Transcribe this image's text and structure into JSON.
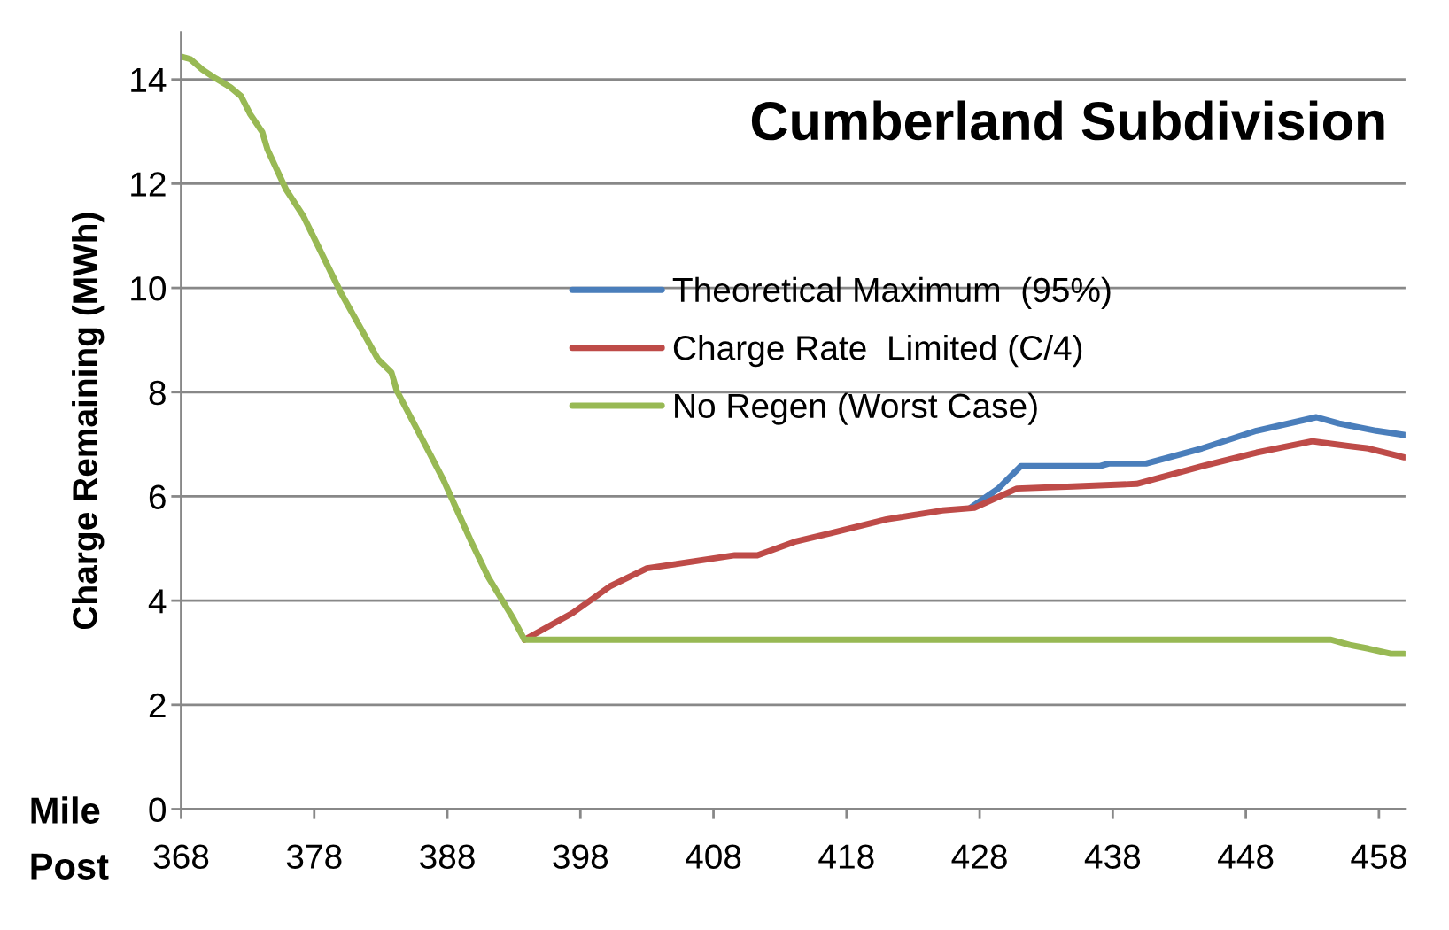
{
  "chart_data": {
    "type": "line",
    "title": "Cumberland Subdivision",
    "ylabel": "Charge Remaining (MWh)",
    "annotations": [
      "Mile",
      "Post"
    ],
    "xlim": [
      368,
      460
    ],
    "xticks": [
      368,
      378,
      388,
      398,
      408,
      418,
      428,
      438,
      448,
      458
    ],
    "ylim": [
      0,
      14.9
    ],
    "yticks": [
      0,
      2,
      4,
      6,
      8,
      10,
      12,
      14
    ],
    "grid": "y",
    "legend": "right",
    "marker": "none",
    "line_style": "solid",
    "series": [
      {
        "name": "Theoretical Maximum  (95%)",
        "color": "#4a7ebb",
        "x": [
          427.3,
          429.4,
          431.1,
          437,
          437.7,
          440.5,
          444.7,
          448.8,
          453.3,
          455,
          457.8,
          459.9
        ],
        "values": [
          5.78,
          6.15,
          6.58,
          6.58,
          6.63,
          6.63,
          6.92,
          7.26,
          7.52,
          7.4,
          7.26,
          7.18
        ]
      },
      {
        "name": "Charge Rate  Limited (C/4)",
        "color": "#be4b48",
        "x": [
          393.8,
          397.4,
          400.2,
          403,
          409.6,
          411.3,
          414.1,
          416.9,
          421,
          425.2,
          427.6,
          430.8,
          435,
          439.8,
          444.7,
          448.8,
          453,
          454.4,
          457.2,
          459.9
        ],
        "values": [
          3.25,
          3.76,
          4.27,
          4.62,
          4.87,
          4.87,
          5.13,
          5.3,
          5.56,
          5.73,
          5.78,
          6.15,
          6.19,
          6.24,
          6.58,
          6.84,
          7.06,
          7.01,
          6.92,
          6.75
        ]
      },
      {
        "name": "No Regen (Worst Case)",
        "color": "#98b954",
        "x": [
          368,
          368.7,
          369.6,
          370.6,
          371.7,
          372.5,
          373.2,
          374.1,
          374.5,
          375.9,
          377.2,
          380,
          382.8,
          383.8,
          384.2,
          386.3,
          387.7,
          389.8,
          391.1,
          392.9,
          393.8,
          454.4,
          455.8,
          457.2,
          458.9,
          459.9
        ],
        "values": [
          14.44,
          14.39,
          14.19,
          14.02,
          13.85,
          13.68,
          13.33,
          12.99,
          12.65,
          11.88,
          11.37,
          9.91,
          8.63,
          8.38,
          8.03,
          7.01,
          6.32,
          5.13,
          4.44,
          3.68,
          3.25,
          3.25,
          3.15,
          3.08,
          2.98,
          2.98
        ]
      }
    ]
  }
}
